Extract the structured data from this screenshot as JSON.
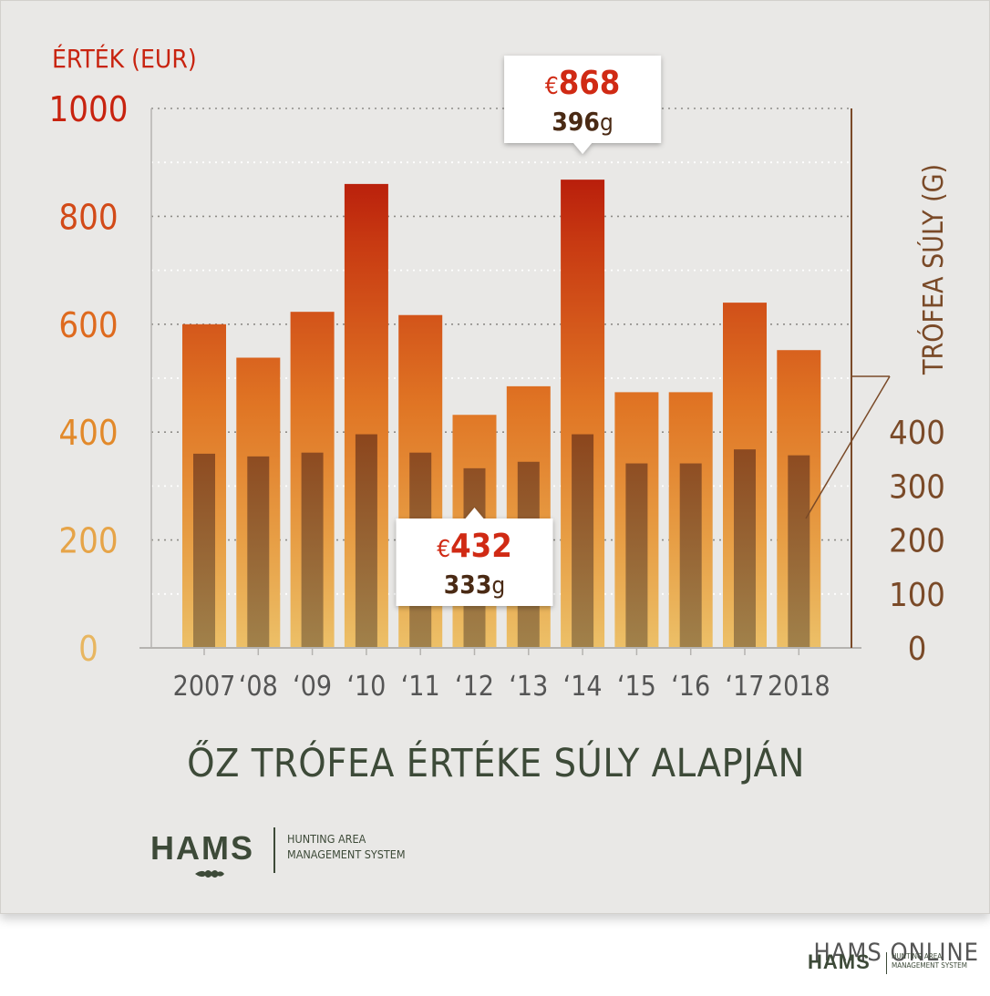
{
  "chart_data": {
    "type": "bar",
    "categories": [
      "2007",
      "‘08",
      "‘09",
      "‘10",
      "‘11",
      "‘12",
      "‘13",
      "‘14",
      "‘15",
      "‘16",
      "‘17",
      "2018"
    ],
    "series": [
      {
        "name": "ÉRTÉK (EUR)",
        "values": [
          600,
          538,
          623,
          860,
          617,
          432,
          485,
          868,
          474,
          474,
          640,
          552
        ]
      },
      {
        "name": "TRÓFEA SÚLY (G)",
        "values": [
          360,
          355,
          362,
          396,
          362,
          333,
          345,
          396,
          342,
          342,
          368,
          357
        ]
      }
    ],
    "y_left": {
      "label": "ÉRTÉK (EUR)",
      "ticks": [
        "1000",
        "800",
        "600",
        "400",
        "200",
        "0"
      ],
      "range": [
        0,
        1000
      ]
    },
    "y_right": {
      "label": "TRÓFEA SÚLY (G)",
      "ticks": [
        "400",
        "300",
        "200",
        "100",
        "0"
      ],
      "range": [
        0,
        1000
      ]
    },
    "grid": true,
    "callouts": [
      {
        "category": "‘14",
        "currency": "€",
        "value": "868",
        "weight": "396",
        "unit": "g"
      },
      {
        "category": "‘12",
        "currency": "€",
        "value": "432",
        "weight": "333",
        "unit": "g"
      }
    ]
  },
  "title": "ŐZ TRÓFEA ÉRTÉKE SÚLY ALAPJÁN",
  "logo": {
    "name": "HAMS",
    "line1": "HUNTING AREA",
    "line2": "MANAGEMENT SYSTEM"
  },
  "footer": {
    "brand": "HAMS ONLINE",
    "logo_name": "HAMS",
    "logo_line1": "HUNTING AREA",
    "logo_line2": "MANAGEMENT SYSTEM"
  },
  "colors": {
    "top_red": "#b20a06",
    "orange": "#e27320",
    "bottom_gold": "#e8b45c",
    "weight_bar": "#8a4a1e",
    "axis_right": "#7a4a28",
    "title": "#3d4a38"
  }
}
